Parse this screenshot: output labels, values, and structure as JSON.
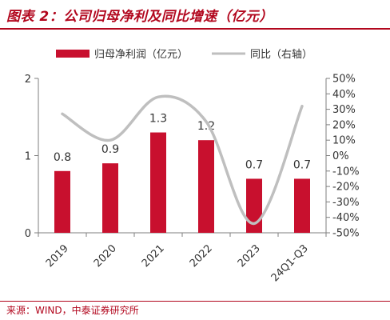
{
  "header": {
    "title": "图表 2：公司归母净利及同比增速（亿元）"
  },
  "source": "来源：WIND，中泰证券研究所",
  "colors": {
    "bar": "#c8102e",
    "line": "#bfbfbf",
    "accent": "#b2071e"
  },
  "chart_data": {
    "type": "bar",
    "categories": [
      "2019",
      "2020",
      "2021",
      "2022",
      "2023",
      "24Q1-Q3"
    ],
    "series": [
      {
        "name": "归母净利润（亿元）",
        "type": "bar",
        "axis": "left",
        "values": [
          0.8,
          0.9,
          1.3,
          1.2,
          0.7,
          0.7
        ],
        "labels": [
          "0.8",
          "0.9",
          "1.3",
          "1.2",
          "0.7",
          "0.7"
        ]
      },
      {
        "name": "同比（右轴）",
        "type": "line",
        "axis": "right",
        "smooth": true,
        "values": [
          27,
          10,
          38,
          22,
          -44,
          32
        ]
      }
    ],
    "y_left": {
      "min": 0,
      "max": 2,
      "ticks": [
        0,
        1,
        2
      ],
      "tick_labels": [
        "0",
        "1",
        "2"
      ]
    },
    "y_right": {
      "min": -50,
      "max": 50,
      "ticks": [
        50,
        40,
        30,
        20,
        10,
        0,
        -10,
        -20,
        -30,
        -40,
        -50
      ],
      "tick_labels": [
        "50%",
        "40%",
        "30%",
        "20%",
        "10%",
        "0%",
        "-10%",
        "-20%",
        "-30%",
        "-40%",
        "-50%"
      ]
    },
    "legend_position": "top",
    "grid": false
  }
}
